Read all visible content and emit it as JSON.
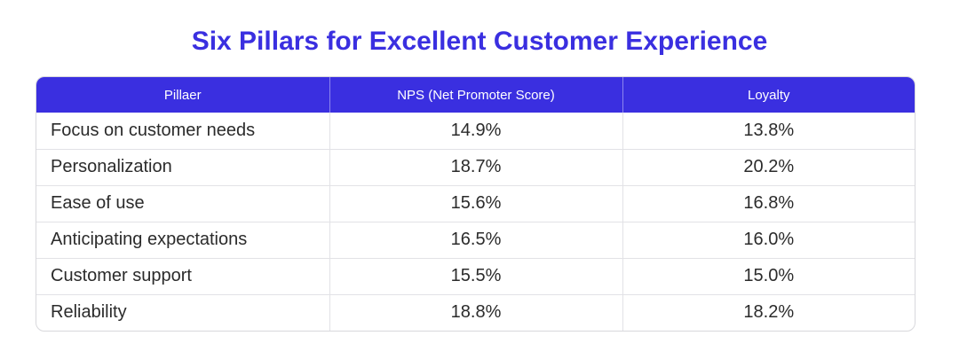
{
  "chart_data": {
    "type": "table",
    "title": "Six Pillars for Excellent Customer Experience",
    "columns": [
      "Pillaer",
      "NPS (Net Promoter Score)",
      "Loyalty"
    ],
    "rows": [
      [
        "Focus on customer needs",
        "14.9%",
        "13.8%"
      ],
      [
        "Personalization",
        "18.7%",
        "20.2%"
      ],
      [
        "Ease of use",
        "15.6%",
        "16.8%"
      ],
      [
        "Anticipating expectations",
        "16.5%",
        "16.0%"
      ],
      [
        "Customer support",
        "15.5%",
        "15.0%"
      ],
      [
        "Reliability",
        "18.8%",
        "18.2%"
      ]
    ],
    "colors": {
      "accent": "#3a2fe0",
      "header_text": "#ffffff",
      "border": "#d8d8dc"
    }
  }
}
